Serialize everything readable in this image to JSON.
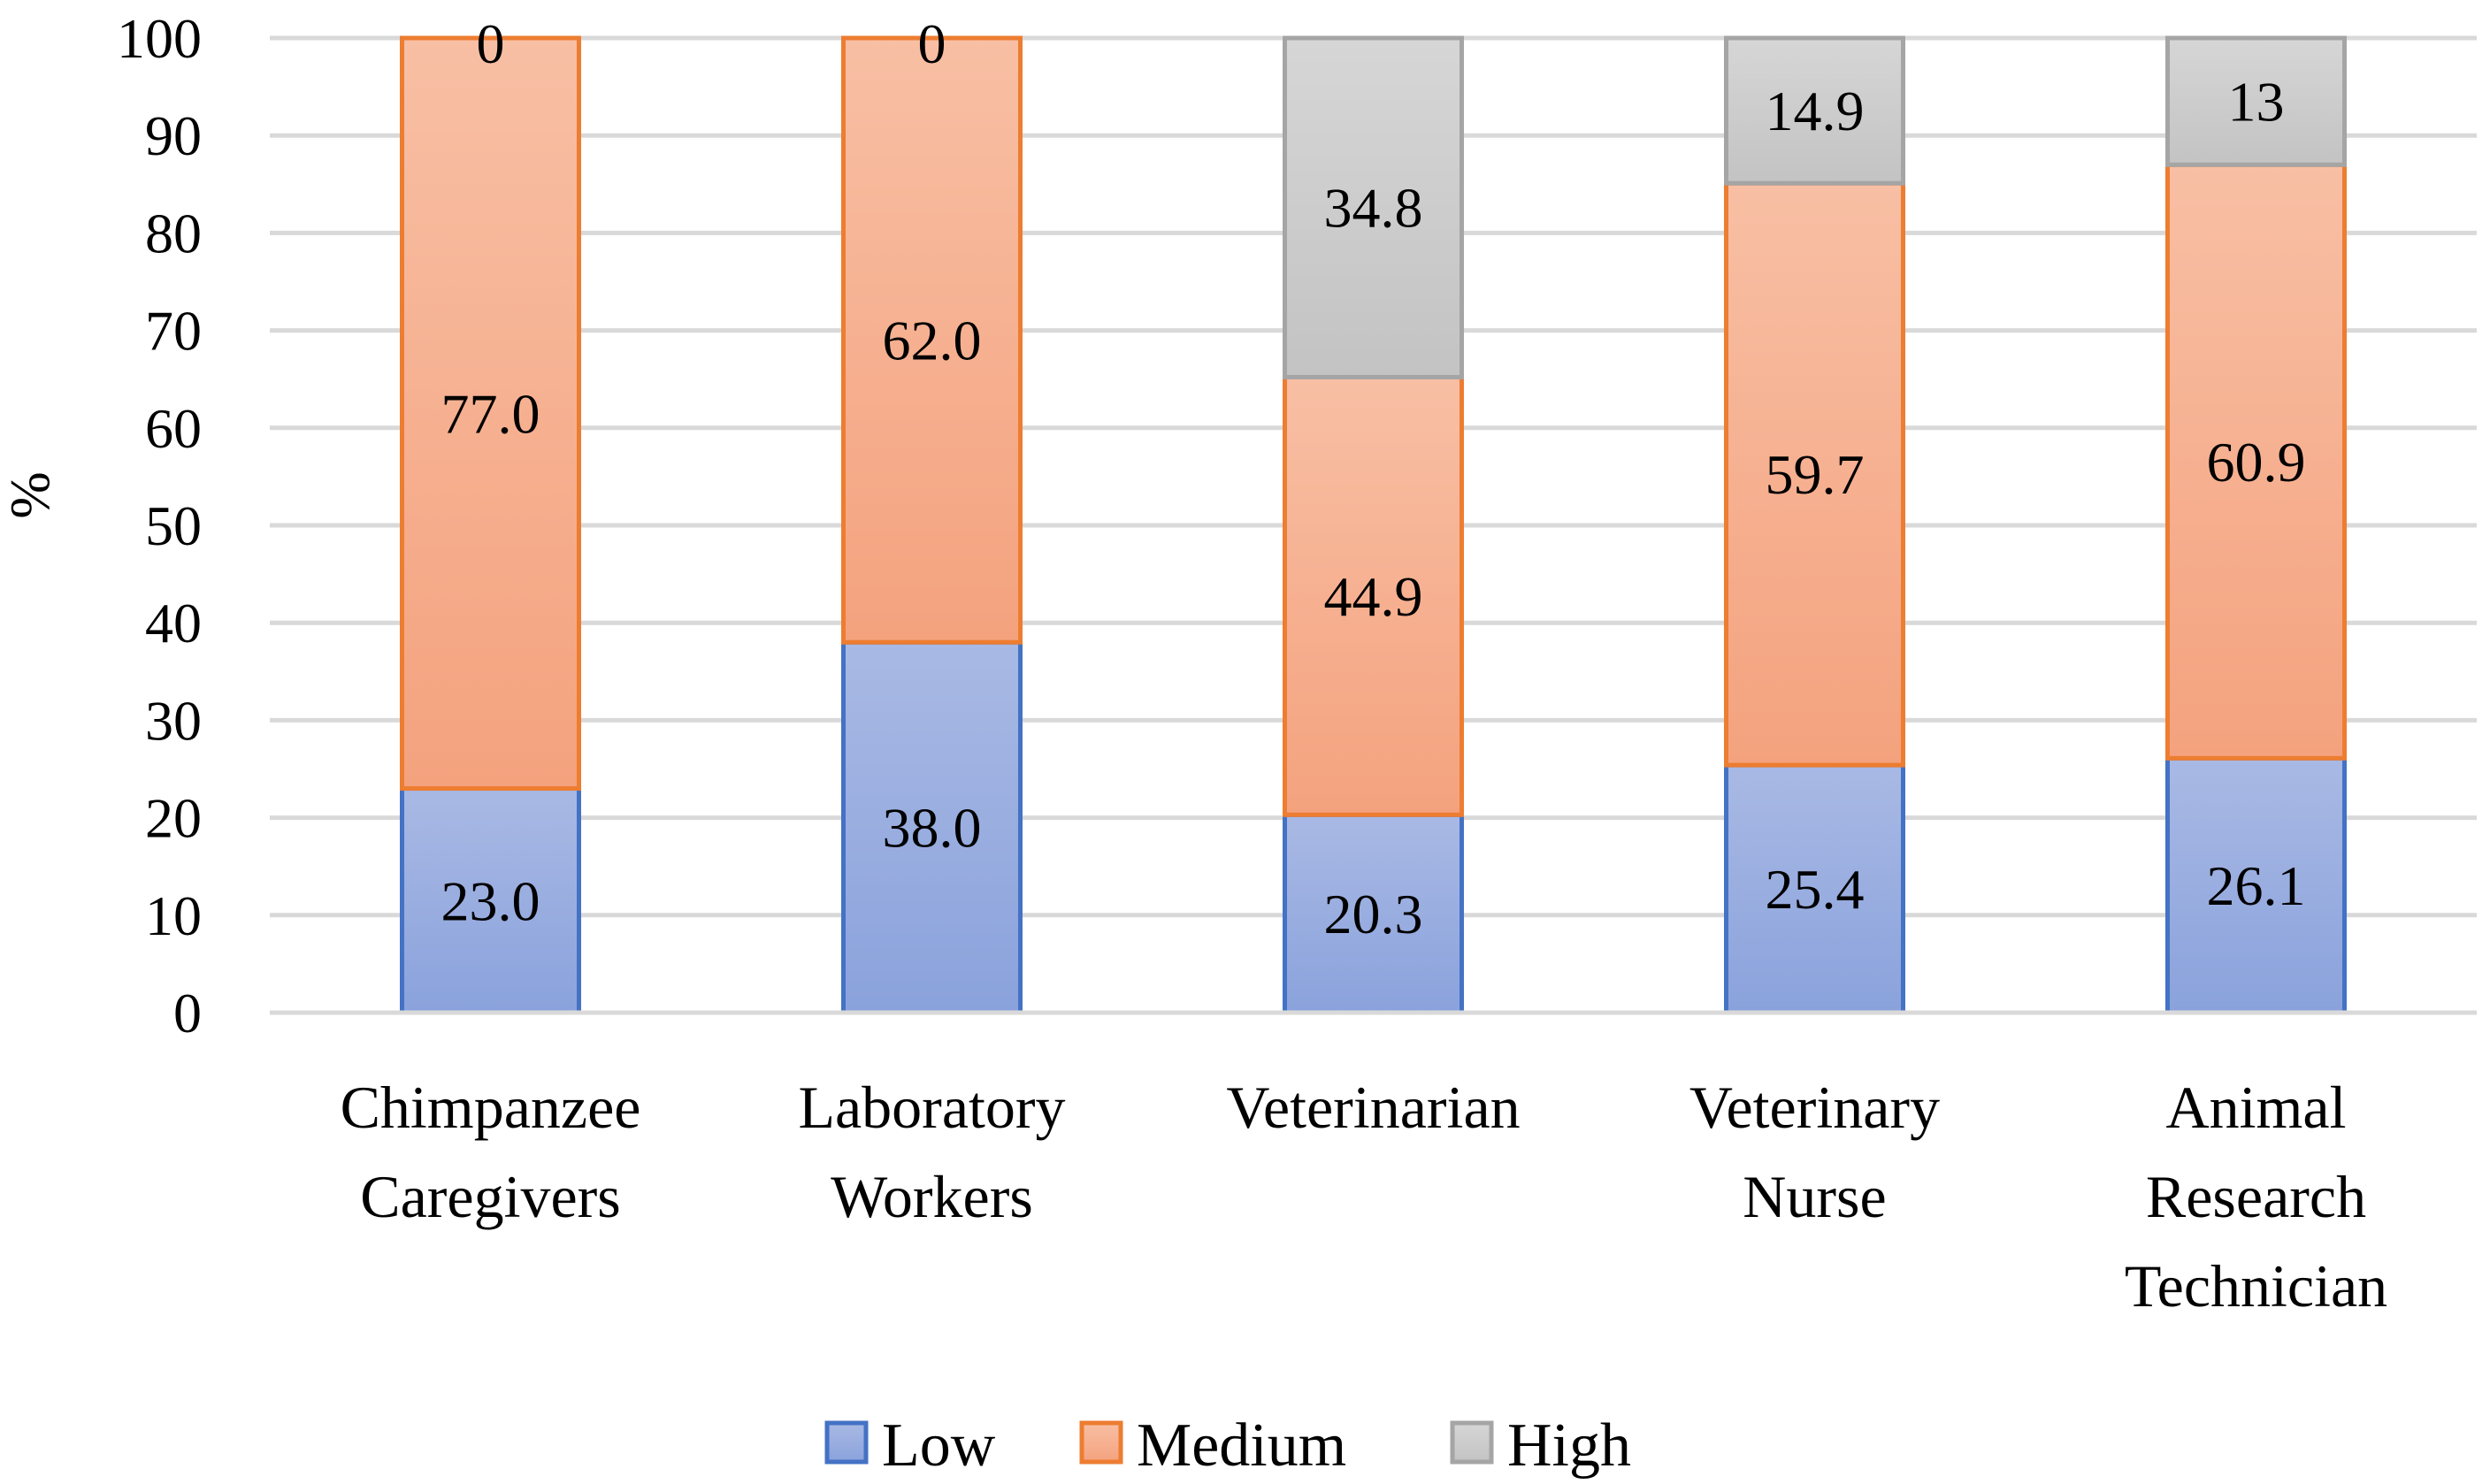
{
  "chart_data": {
    "type": "bar",
    "stacked": true,
    "title": "",
    "xlabel": "",
    "ylabel": "%",
    "ylim": [
      0,
      100
    ],
    "yticks": [
      0,
      10,
      20,
      30,
      40,
      50,
      60,
      70,
      80,
      90,
      100
    ],
    "grid": true,
    "legend_position": "bottom",
    "categories": [
      [
        "Chimpanzee",
        "Caregivers"
      ],
      [
        "Laboratory",
        "Workers"
      ],
      [
        "Veterinarian"
      ],
      [
        "Veterinary",
        "Nurse"
      ],
      [
        "Animal",
        "Research",
        "Technician"
      ]
    ],
    "series": [
      {
        "name": "Low",
        "values": [
          23.0,
          38.0,
          20.3,
          25.4,
          26.1
        ],
        "labels": [
          "23.0",
          "38.0",
          "20.3",
          "25.4",
          "26.1"
        ],
        "fill_top": "#a9b9e4",
        "fill_bottom": "#8aa2dc",
        "stroke": "#4472c4"
      },
      {
        "name": "Medium",
        "values": [
          77.0,
          62.0,
          44.9,
          59.7,
          60.9
        ],
        "labels": [
          "77.0",
          "62.0",
          "44.9",
          "59.7",
          "60.9"
        ],
        "fill_top": "#f8bfa4",
        "fill_bottom": "#f4a27e",
        "stroke": "#ed7d31"
      },
      {
        "name": "High",
        "values": [
          0,
          0,
          34.8,
          14.9,
          13
        ],
        "labels": [
          "0",
          "0",
          "34.8",
          "14.9",
          "13"
        ],
        "fill_top": "#d6d6d6",
        "fill_bottom": "#c3c3c3",
        "stroke": "#a5a5a5"
      }
    ]
  }
}
